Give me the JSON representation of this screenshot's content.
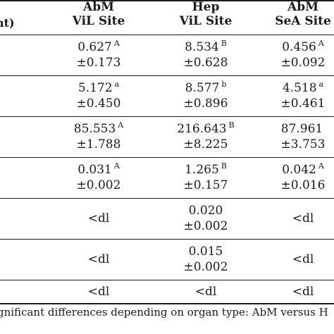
{
  "header": {
    "stub": "nt)",
    "columns": [
      {
        "line1": "AbM",
        "line2": "ViL Site"
      },
      {
        "line1": "Hep",
        "line2": "ViL Site"
      },
      {
        "line1": "AbM",
        "line2": "SeA Site"
      }
    ]
  },
  "rows": [
    {
      "cells": [
        {
          "mean": "0.627",
          "sup": "A",
          "sd": "±0.173"
        },
        {
          "mean": "8.534",
          "sup": "B",
          "sd": "±0.628"
        },
        {
          "mean": "0.456",
          "sup": "A",
          "sd": "±0.092"
        }
      ]
    },
    {
      "cells": [
        {
          "mean": "5.172",
          "sup": "a",
          "sd": "±0.450"
        },
        {
          "mean": "8.577",
          "sup": "b",
          "sd": "±0.896"
        },
        {
          "mean": "4.518",
          "sup": "a",
          "sd": "±0.461"
        }
      ]
    },
    {
      "cells": [
        {
          "mean": "85.553",
          "sup": "A",
          "sd": "±1.788"
        },
        {
          "mean": "216.643",
          "sup": "B",
          "sd": "±8.225"
        },
        {
          "mean": "87.961",
          "sup": "",
          "sd": "±3.753"
        }
      ]
    },
    {
      "cells": [
        {
          "mean": "0.031",
          "sup": "A",
          "sd": "±0.002"
        },
        {
          "mean": "1.265",
          "sup": "B",
          "sd": "±0.157"
        },
        {
          "mean": "0.042",
          "sup": "A",
          "sd": "±0.016"
        }
      ]
    },
    {
      "cells": [
        {
          "mean": "<dl",
          "sup": "",
          "sd": ""
        },
        {
          "mean": "0.020",
          "sup": "",
          "sd": "±0.002"
        },
        {
          "mean": "<dl",
          "sup": "",
          "sd": ""
        }
      ]
    },
    {
      "cells": [
        {
          "mean": "<dl",
          "sup": "",
          "sd": ""
        },
        {
          "mean": "0.015",
          "sup": "",
          "sd": "±0.002"
        },
        {
          "mean": "<dl",
          "sup": "",
          "sd": ""
        }
      ]
    },
    {
      "cells": [
        {
          "mean": "<dl",
          "sup": "",
          "sd": ""
        },
        {
          "mean": "<dl",
          "sup": "",
          "sd": ""
        },
        {
          "mean": "<dl",
          "sup": "",
          "sd": ""
        }
      ]
    }
  ],
  "footnote": "gnificant differences depending on organ type: AbM versus H"
}
